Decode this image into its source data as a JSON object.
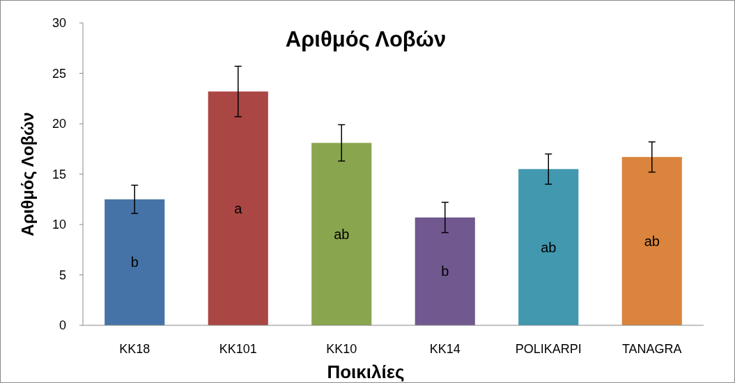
{
  "chart_data": {
    "type": "bar",
    "title": "Αριθμός Λοβών",
    "xlabel": "Ποικιλίες",
    "ylabel": "Αριθμός Λοβών",
    "categories": [
      "KK18",
      "KK101",
      "KK10",
      "KK14",
      "POLIKARPI",
      "TANAGRA"
    ],
    "values": [
      12.5,
      23.2,
      18.1,
      10.7,
      15.5,
      16.7
    ],
    "colors": [
      "#4573a7",
      "#aa4644",
      "#89a54e",
      "#71588f",
      "#4198af",
      "#db843d"
    ],
    "errors": [
      1.4,
      2.5,
      1.8,
      1.5,
      1.5,
      1.5
    ],
    "ylim": [
      0,
      30
    ],
    "yticks": [
      0,
      5,
      10,
      15,
      20,
      25,
      30
    ],
    "grid": false,
    "annotations": [
      "b",
      "a",
      "ab",
      "b",
      "ab",
      "ab"
    ]
  }
}
